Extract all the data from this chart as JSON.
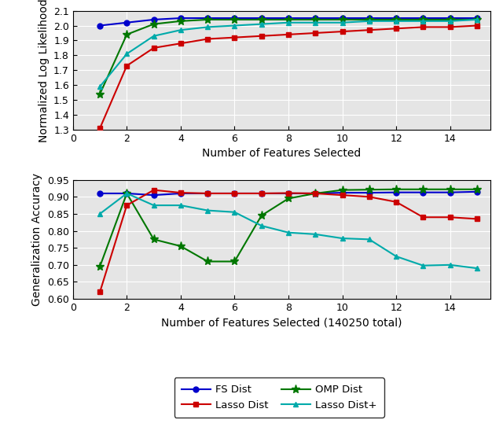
{
  "x": [
    1,
    2,
    3,
    4,
    5,
    6,
    7,
    8,
    9,
    10,
    11,
    12,
    13,
    14,
    15
  ],
  "top_plot": {
    "ylabel": "Normalized Log Likelihood",
    "xlabel": "Number of Features Selected",
    "ylim": [
      1.3,
      2.1
    ],
    "yticks": [
      1.3,
      1.4,
      1.5,
      1.6,
      1.7,
      1.8,
      1.9,
      2.0,
      2.1
    ],
    "xlim": [
      0,
      15.5
    ],
    "xticks": [
      0,
      2,
      4,
      6,
      8,
      10,
      12,
      14
    ],
    "fs_dist": [
      2.0,
      2.02,
      2.04,
      2.05,
      2.05,
      2.05,
      2.05,
      2.05,
      2.05,
      2.05,
      2.05,
      2.05,
      2.05,
      2.05,
      2.05
    ],
    "omp_dist": [
      1.54,
      1.94,
      2.01,
      2.03,
      2.04,
      2.04,
      2.04,
      2.04,
      2.04,
      2.04,
      2.04,
      2.04,
      2.04,
      2.04,
      2.04
    ],
    "lasso_dist": [
      1.31,
      1.73,
      1.85,
      1.88,
      1.91,
      1.92,
      1.93,
      1.94,
      1.95,
      1.96,
      1.97,
      1.98,
      1.99,
      1.99,
      2.0
    ],
    "lasso_dist_plus": [
      1.59,
      1.81,
      1.93,
      1.97,
      1.99,
      2.0,
      2.01,
      2.02,
      2.02,
      2.02,
      2.03,
      2.03,
      2.03,
      2.03,
      2.04
    ]
  },
  "bot_plot": {
    "ylabel": "Generalization Accuracy",
    "xlabel": "Number of Features Selected (140250 total)",
    "ylim": [
      0.6,
      0.95
    ],
    "yticks": [
      0.6,
      0.65,
      0.7,
      0.75,
      0.8,
      0.85,
      0.9,
      0.95
    ],
    "xlim": [
      0,
      15.5
    ],
    "xticks": [
      0,
      2,
      4,
      6,
      8,
      10,
      12,
      14
    ],
    "fs_dist": [
      0.91,
      0.91,
      0.905,
      0.91,
      0.91,
      0.91,
      0.91,
      0.91,
      0.91,
      0.912,
      0.912,
      0.913,
      0.913,
      0.913,
      0.915
    ],
    "omp_dist": [
      0.695,
      0.91,
      0.775,
      0.755,
      0.71,
      0.71,
      0.845,
      0.895,
      0.91,
      0.92,
      0.921,
      0.922,
      0.922,
      0.922,
      0.922
    ],
    "lasso_dist": [
      0.62,
      0.875,
      0.92,
      0.912,
      0.91,
      0.91,
      0.91,
      0.911,
      0.91,
      0.905,
      0.9,
      0.885,
      0.84,
      0.84,
      0.835
    ],
    "lasso_dist_plus": [
      0.85,
      0.91,
      0.875,
      0.875,
      0.86,
      0.855,
      0.815,
      0.795,
      0.79,
      0.778,
      0.775,
      0.725,
      0.698,
      0.7,
      0.69
    ]
  },
  "colors": {
    "fs_dist": "#0000cc",
    "omp_dist": "#007700",
    "lasso_dist": "#cc0000",
    "lasso_dist_plus": "#00aaaa"
  },
  "legend": {
    "fs_dist": "FS Dist",
    "omp_dist": "OMP Dist",
    "lasso_dist": "Lasso Dist",
    "lasso_dist_plus": "Lasso Dist+"
  },
  "axes_facecolor": "#e5e5e5",
  "fig_facecolor": "#ffffff",
  "grid_color": "#ffffff",
  "tick_labelsize": 9,
  "label_fontsize": 10
}
